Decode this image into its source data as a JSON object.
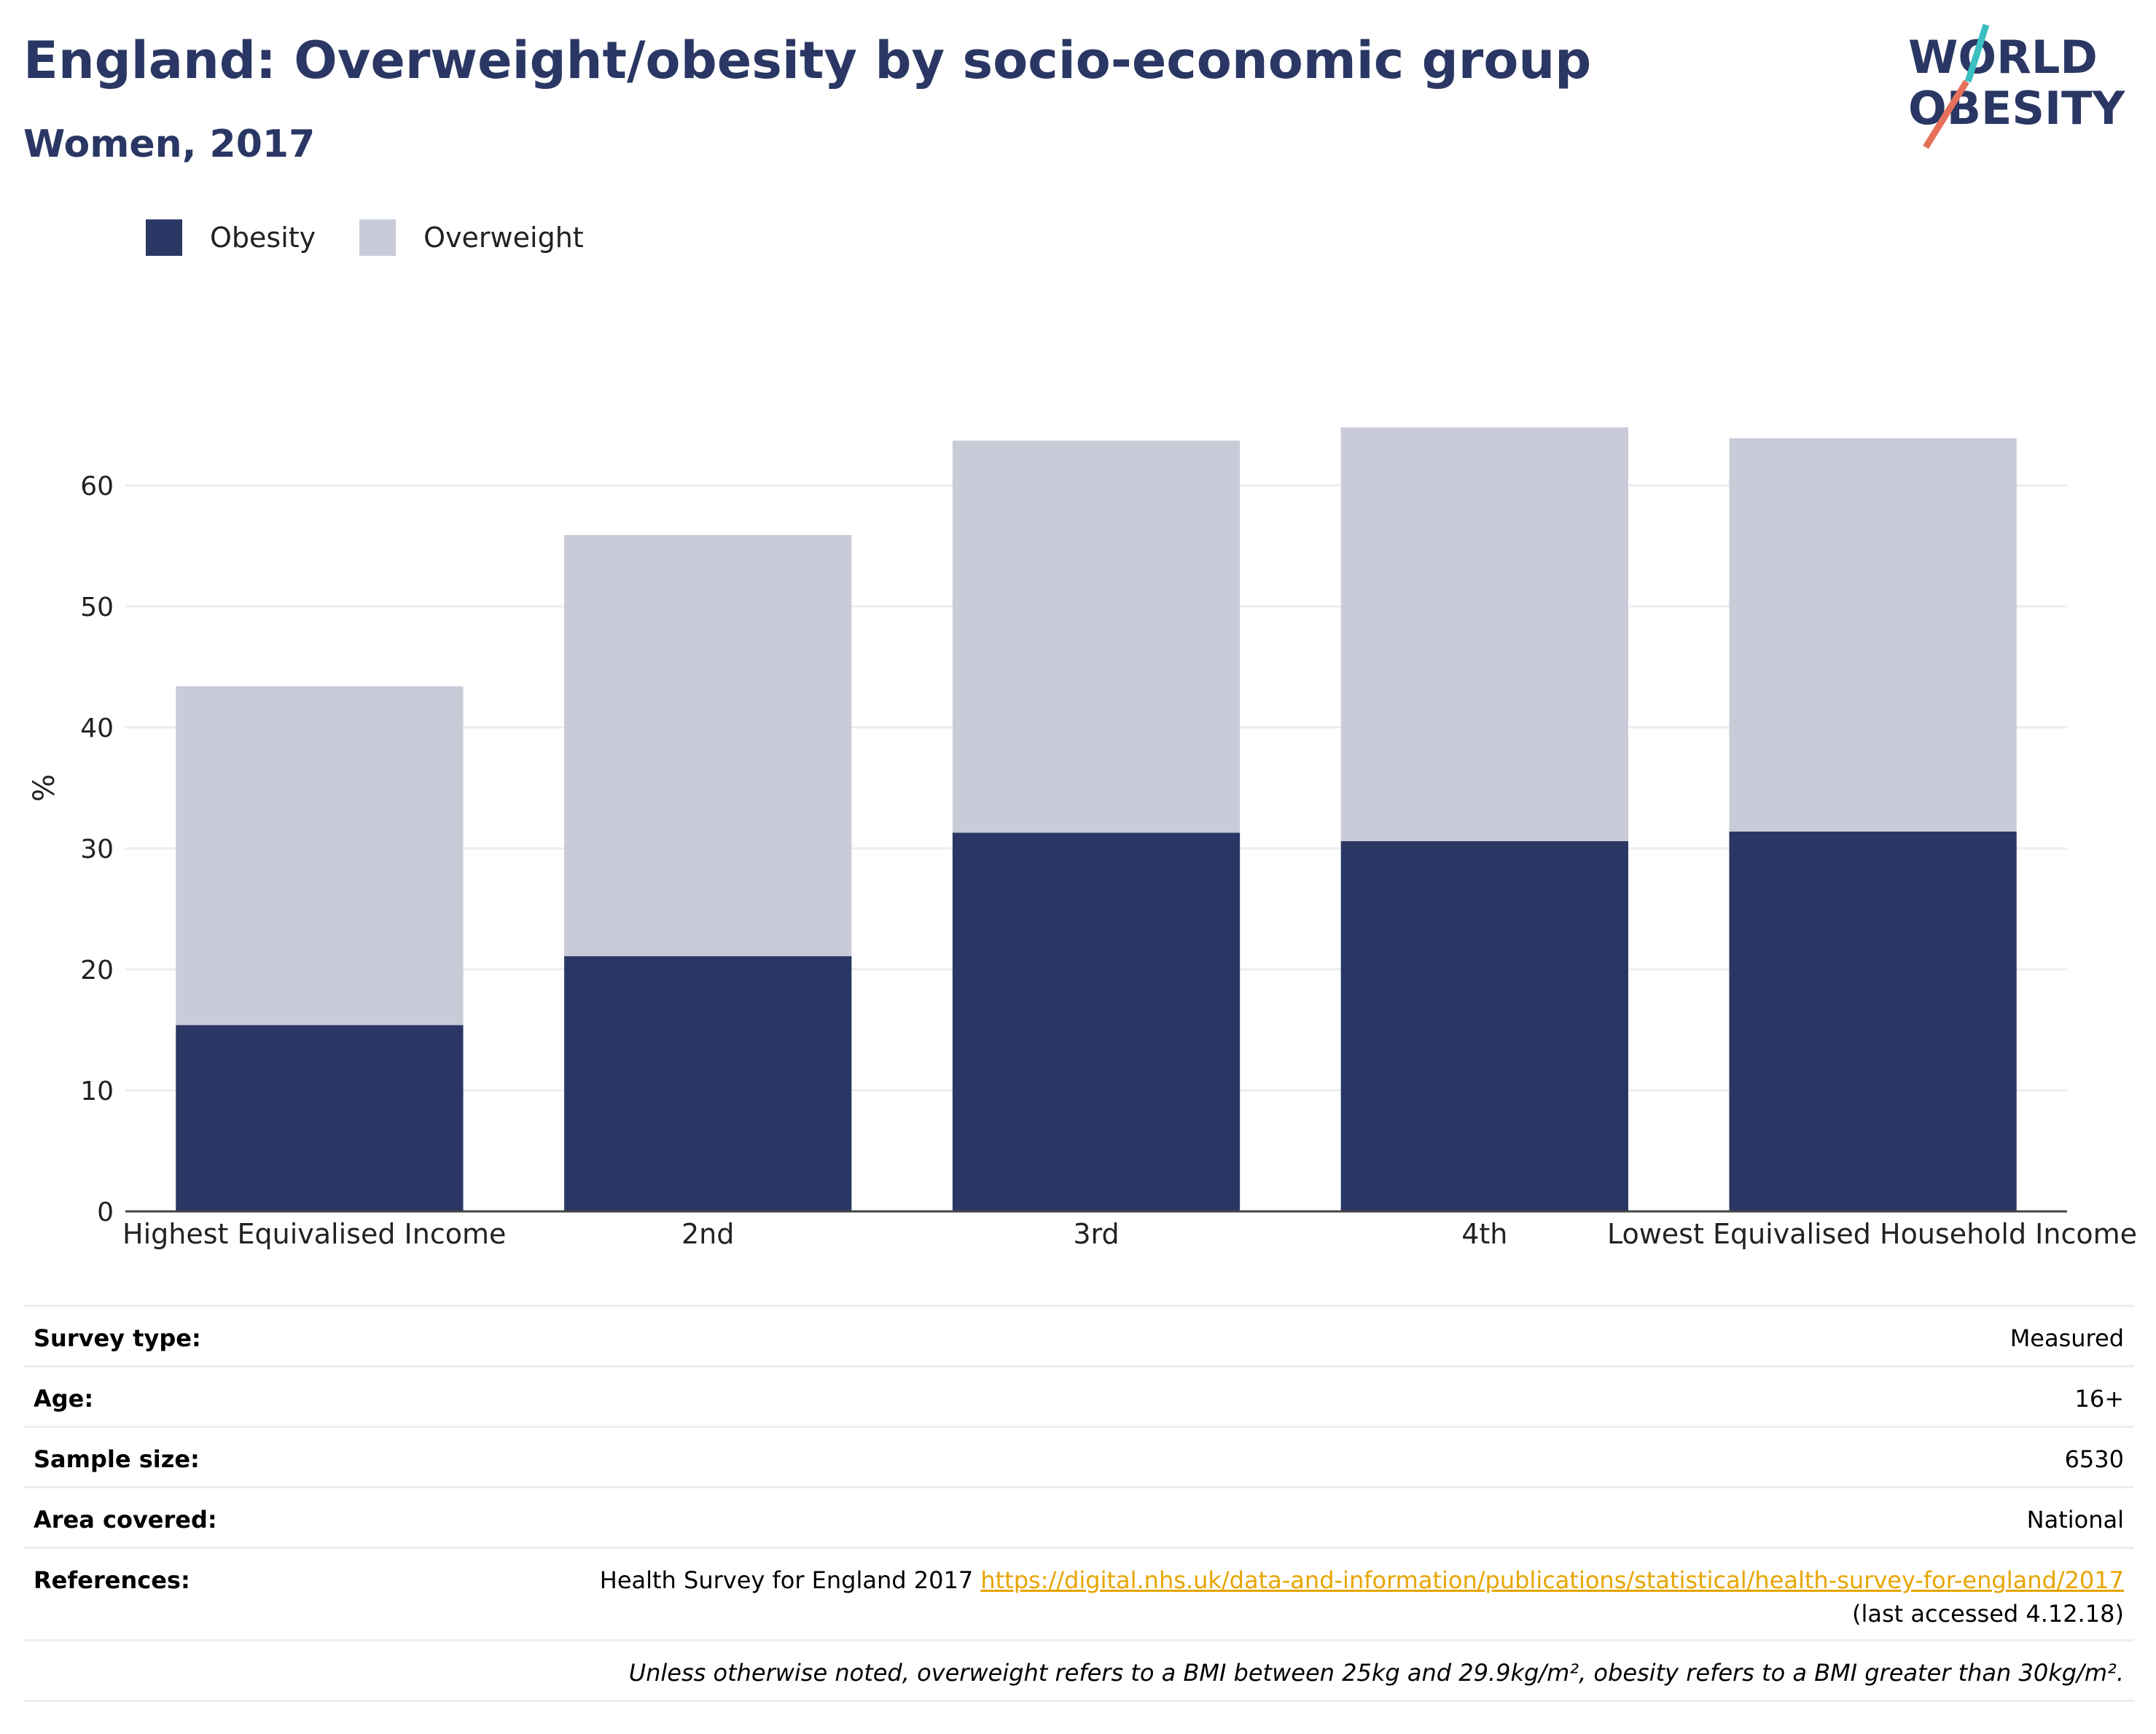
{
  "header": {
    "title": "England: Overweight/obesity by socio-economic group",
    "subtitle": "Women, 2017"
  },
  "logo": {
    "line1": "WORLD",
    "line2": "OBESITY",
    "slash_color_top": "#3bbfc0",
    "slash_color_bottom": "#e5705b",
    "text_color": "#2a3764"
  },
  "legend": [
    {
      "label": "Obesity",
      "color": "#2a3764"
    },
    {
      "label": "Overweight",
      "color": "#c9ccd8"
    }
  ],
  "chart_data": {
    "type": "bar",
    "stacked": true,
    "title": "England: Overweight/obesity by socio-economic group",
    "subtitle": "Women, 2017",
    "xlabel": "",
    "ylabel": "%",
    "ylim": [
      0,
      70
    ],
    "yticks": [
      0,
      10,
      20,
      30,
      40,
      50,
      60
    ],
    "grid": true,
    "legend_position": "top-left",
    "categories": [
      "Highest Equivalised Income",
      "2nd",
      "3rd",
      "4th",
      "Lowest Equivalised Household Income"
    ],
    "series": [
      {
        "name": "Obesity",
        "color": "#2a3764",
        "values": [
          15.4,
          21.1,
          31.3,
          30.6,
          31.4
        ]
      },
      {
        "name": "Overweight",
        "color": "#c9ccd8",
        "values": [
          28.0,
          34.8,
          32.4,
          34.2,
          32.5
        ]
      }
    ]
  },
  "info": {
    "survey_type": {
      "label": "Survey type:",
      "value": "Measured"
    },
    "age": {
      "label": "Age:",
      "value": "16+"
    },
    "sample_size": {
      "label": "Sample size:",
      "value": "6530"
    },
    "area": {
      "label": "Area covered:",
      "value": "National"
    },
    "references": {
      "label": "References:",
      "text": "Health Survey for England 2017 ",
      "url": "https://digital.nhs.uk/data-and-information/publications/statistical/health-survey-for-england/2017",
      "accessed": "(last accessed 4.12.18)"
    },
    "note": "Unless otherwise noted, overweight refers to a BMI between 25kg and 29.9kg/m², obesity refers to a BMI greater than 30kg/m²."
  }
}
